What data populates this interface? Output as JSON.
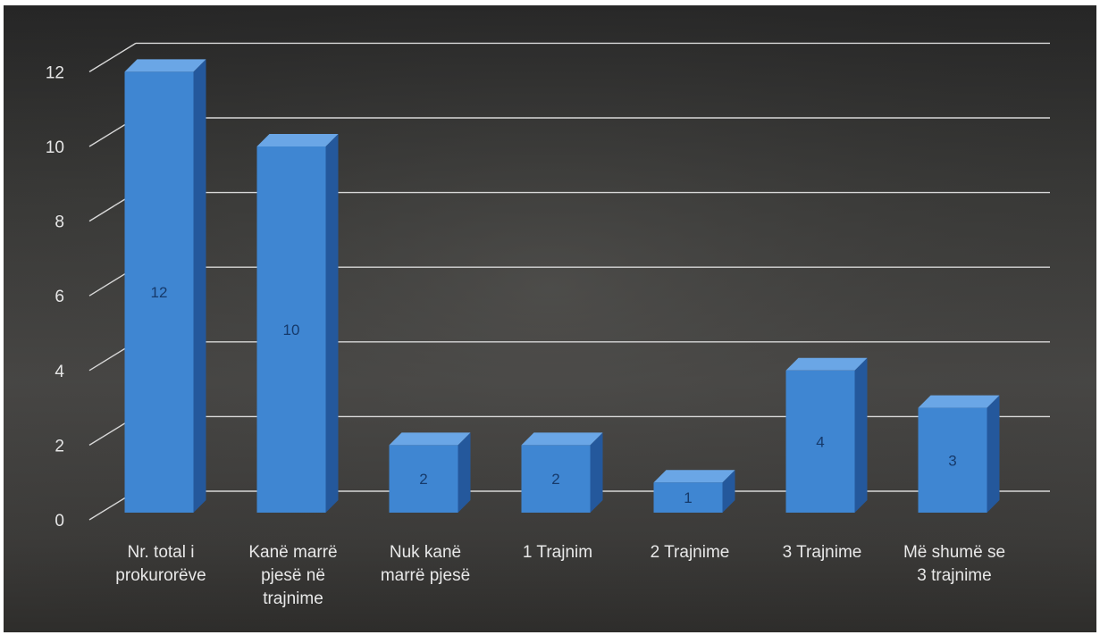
{
  "chart_data": {
    "type": "bar",
    "title": "",
    "xlabel": "",
    "ylabel": "",
    "categories": [
      [
        "Nr. total i",
        "prokurorëve"
      ],
      [
        "Kanë marrë",
        "pjesë në",
        "trajnime"
      ],
      [
        "Nuk kanë",
        "marrë pjesë"
      ],
      [
        "1 Trajnim"
      ],
      [
        "2 Trajnime"
      ],
      [
        "3 Trajnime"
      ],
      [
        "Më shumë se",
        "3 trajnime"
      ]
    ],
    "values": [
      12,
      10,
      2,
      2,
      1,
      4,
      3
    ],
    "data_labels": [
      "12",
      "10",
      "2",
      "2",
      "1",
      "4",
      "3"
    ],
    "yticks": [
      "0",
      "2",
      "4",
      "6",
      "8",
      "10",
      "12"
    ],
    "ylim": [
      0,
      12
    ],
    "grid": true,
    "legend": "none",
    "three_d": true,
    "colors": {
      "background_dark": "#2a2a2a",
      "background_light": "#4a4a48",
      "bar_front": "#3f86d2",
      "bar_side": "#24589c",
      "bar_top": "#6aa6e6",
      "gridline": "#d8d8d8"
    }
  }
}
